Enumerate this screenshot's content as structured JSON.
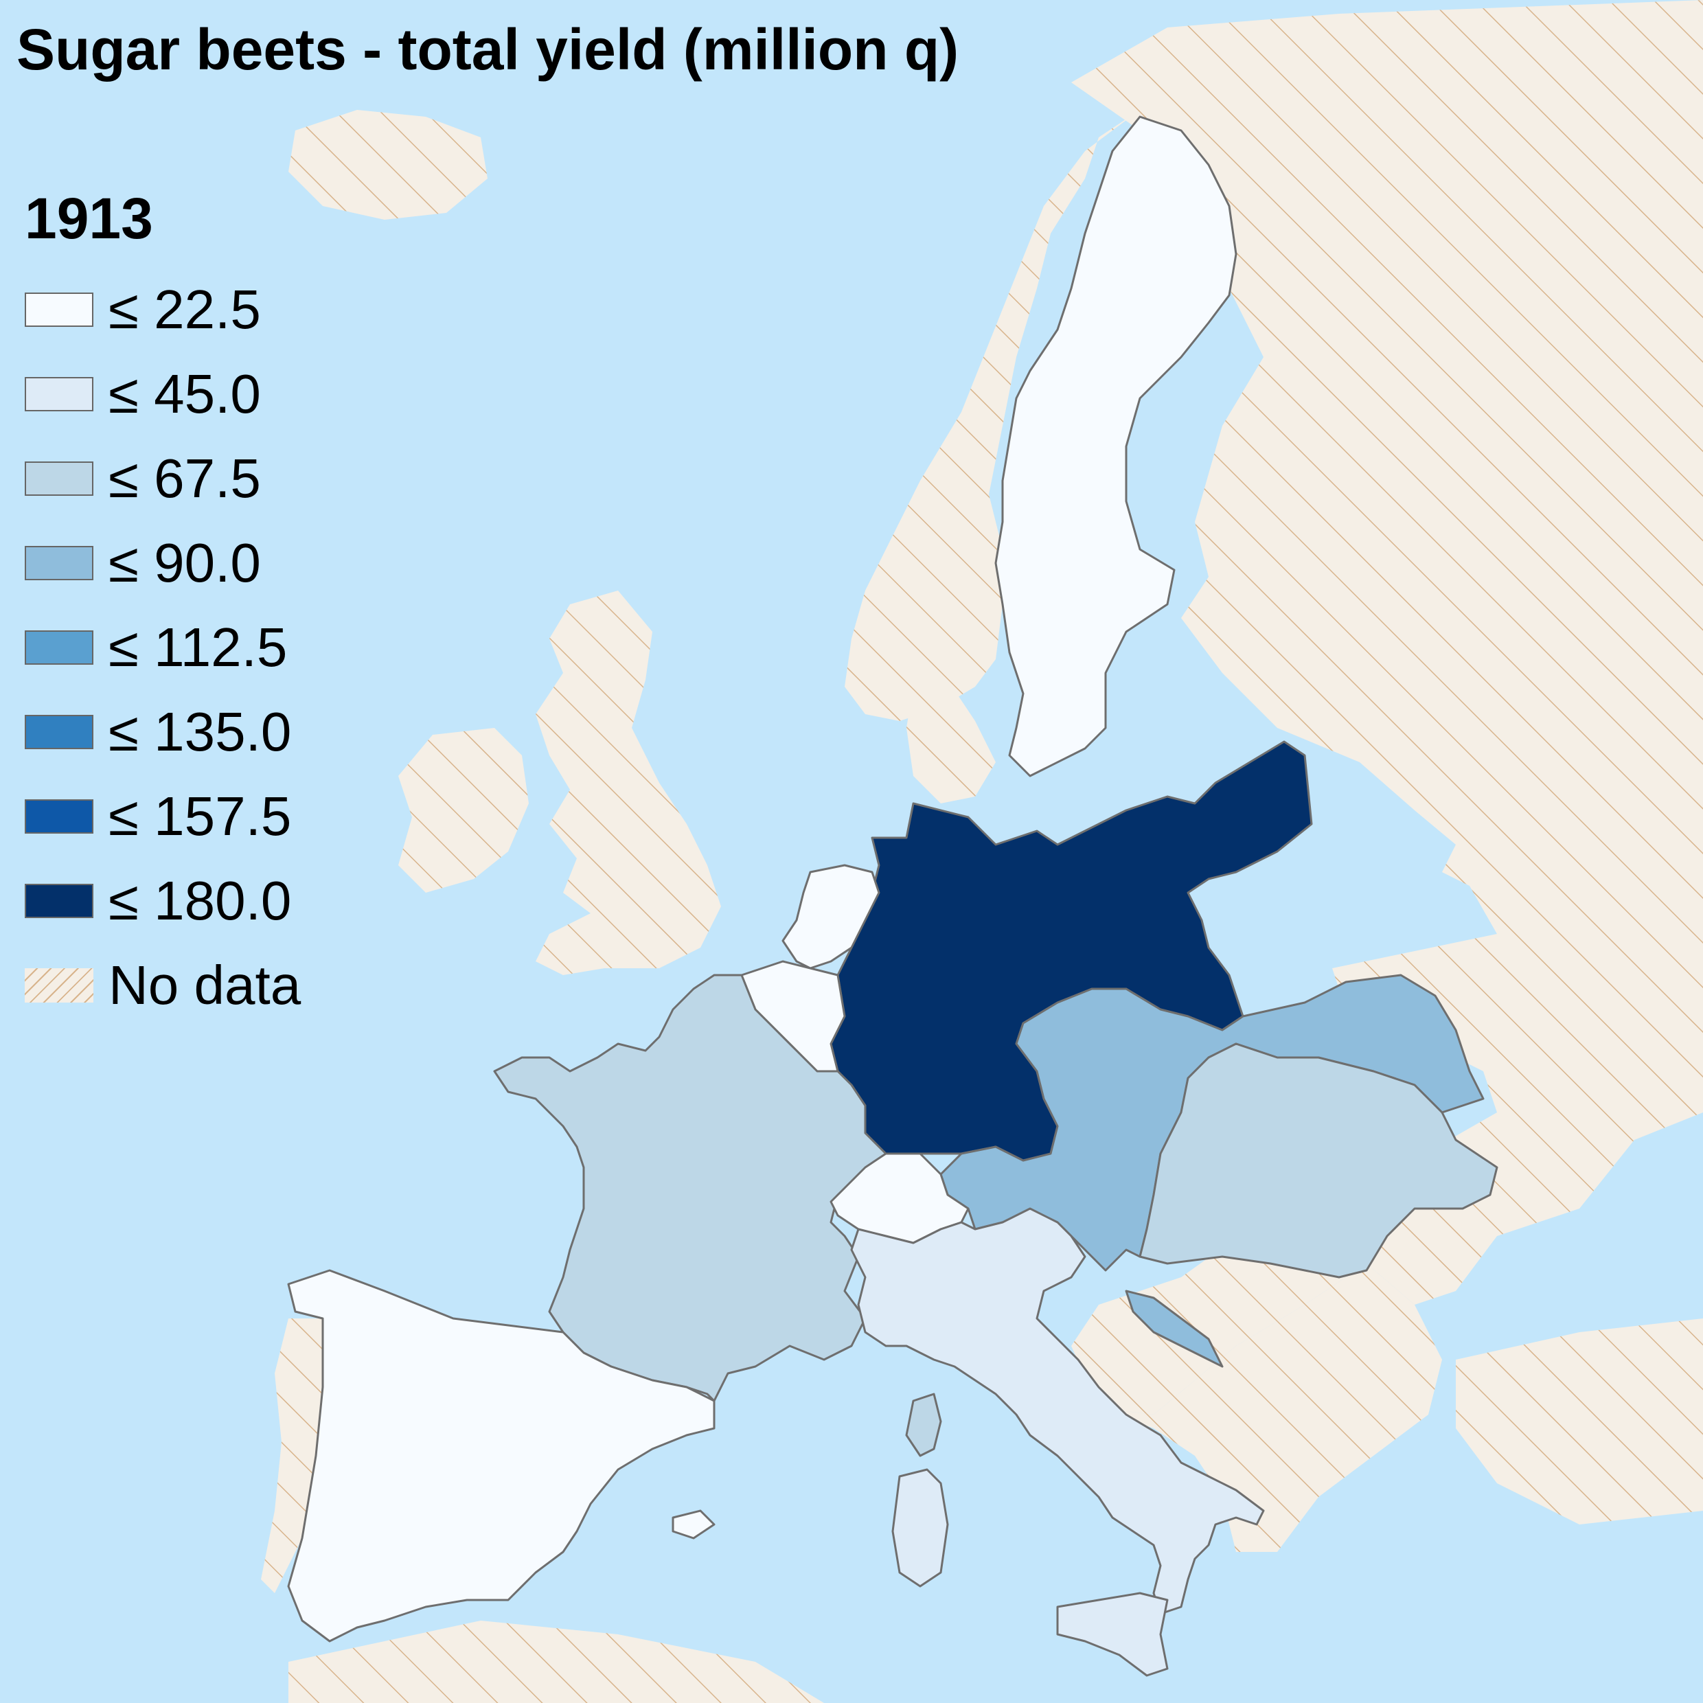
{
  "map": {
    "title": "Sugar beets - total yield (million q)",
    "year": "1913",
    "colors": {
      "sea": "#c3e6fb",
      "no_data_fill": "#f5efe6",
      "no_data_hatch": "#d8b48c",
      "border": "#6e6e6e"
    },
    "legend": [
      {
        "label": "≤ 22.5",
        "color": "#f7fbff"
      },
      {
        "label": "≤ 45.0",
        "color": "#deebf7"
      },
      {
        "label": "≤ 67.5",
        "color": "#bdd7e7"
      },
      {
        "label": "≤ 90.0",
        "color": "#8fbddc"
      },
      {
        "label": "≤ 112.5",
        "color": "#5aa0d0"
      },
      {
        "label": "≤ 135.0",
        "color": "#3080c0"
      },
      {
        "label": "≤ 157.5",
        "color": "#0e58a8"
      },
      {
        "label": "≤ 180.0",
        "color": "#03306a"
      },
      {
        "label": "No data",
        "color": "no-data-hatch"
      }
    ],
    "regions": [
      {
        "name": "Germany",
        "bin": "≤ 180.0"
      },
      {
        "name": "Austria",
        "bin": "≤ 90.0"
      },
      {
        "name": "Hungary",
        "bin": "≤ 67.5"
      },
      {
        "name": "France",
        "bin": "≤ 67.5"
      },
      {
        "name": "Italy",
        "bin": "≤ 45.0"
      },
      {
        "name": "Spain",
        "bin": "≤ 22.5"
      },
      {
        "name": "Sweden",
        "bin": "≤ 22.5"
      },
      {
        "name": "Netherlands",
        "bin": "≤ 22.5"
      },
      {
        "name": "Belgium",
        "bin": "≤ 22.5"
      },
      {
        "name": "Switzerland",
        "bin": "≤ 22.5"
      }
    ]
  }
}
